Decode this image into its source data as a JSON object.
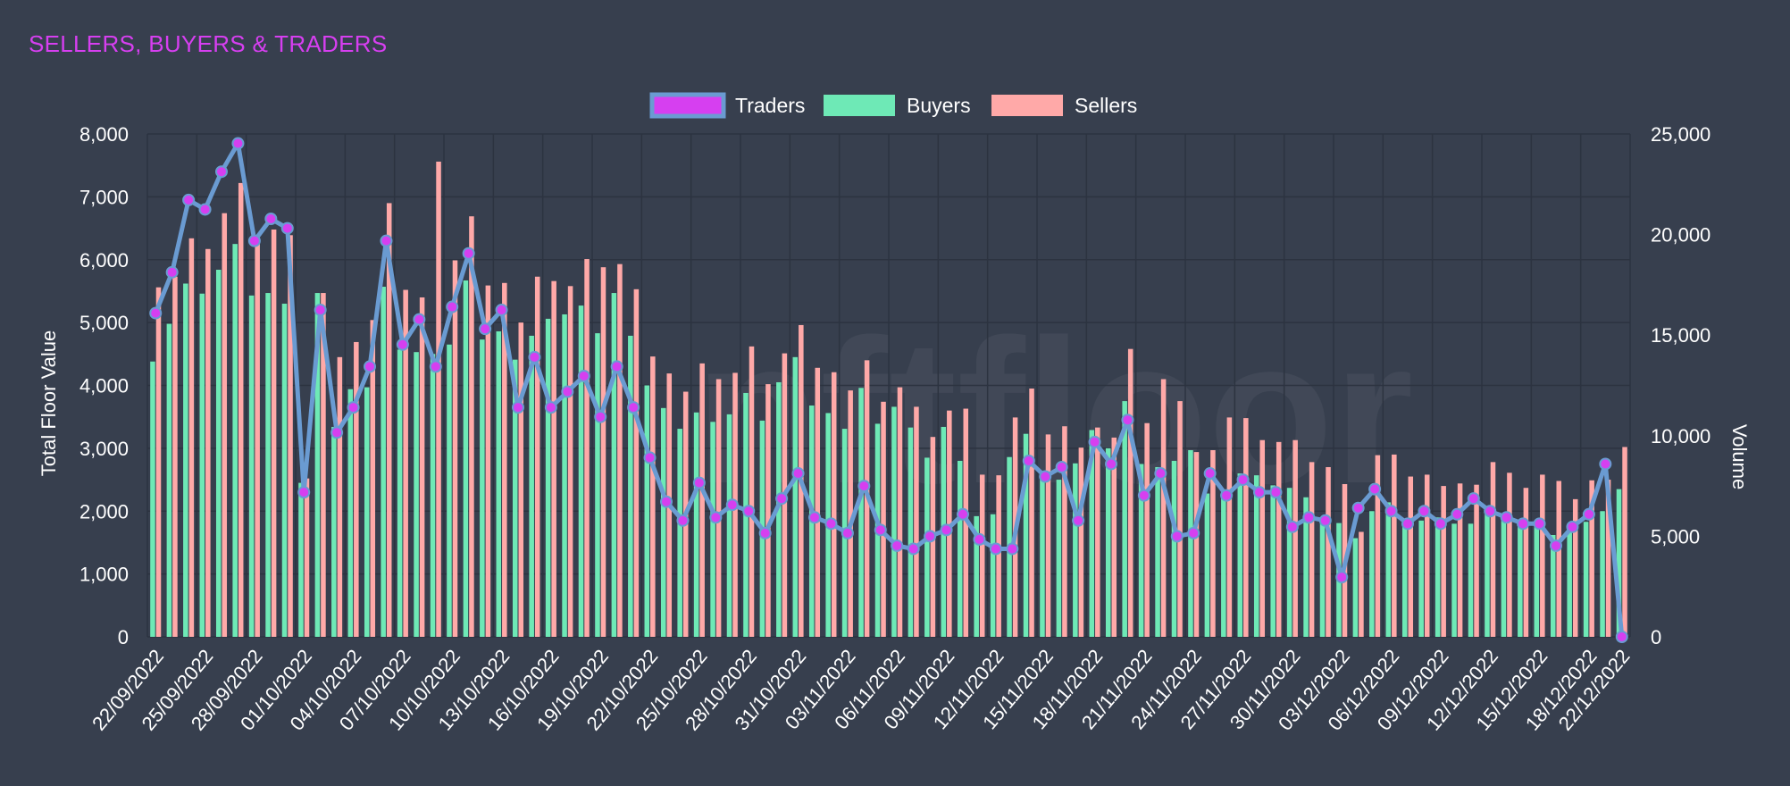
{
  "title": "SELLERS, BUYERS & TRADERS",
  "watermark": "nftfloor",
  "colors": {
    "background": "#373f4e",
    "title": "#d63ff0",
    "traders_line": "#6a9bd2",
    "traders_point": "#d63ff0",
    "buyers": "#6ee9b6",
    "sellers": "#ffa9a8",
    "grid": "#2c3340",
    "text": "#ffffff"
  },
  "chart_data": {
    "type": "bar",
    "title": "SELLERS, BUYERS & TRADERS",
    "legend_position": "top-center",
    "grid": true,
    "y_left": {
      "label": "Total Floor Value",
      "range": [
        0,
        8000
      ],
      "ticks": [
        "0",
        "1,000",
        "2,000",
        "3,000",
        "4,000",
        "5,000",
        "6,000",
        "7,000",
        "8,000"
      ]
    },
    "y_right": {
      "label": "Volume",
      "range": [
        0,
        25000
      ],
      "ticks": [
        "0",
        "5,000",
        "10,000",
        "15,000",
        "20,000",
        "25,000"
      ]
    },
    "x_tick_labels": [
      "22/09/2022",
      "25/09/2022",
      "28/09/2022",
      "01/10/2022",
      "04/10/2022",
      "07/10/2022",
      "10/10/2022",
      "13/10/2022",
      "16/10/2022",
      "19/10/2022",
      "22/10/2022",
      "25/10/2022",
      "28/10/2022",
      "31/10/2022",
      "03/11/2022",
      "06/11/2022",
      "09/11/2022",
      "12/11/2022",
      "15/11/2022",
      "18/11/2022",
      "21/11/2022",
      "24/11/2022",
      "27/11/2022",
      "30/11/2022",
      "03/12/2022",
      "06/12/2022",
      "09/12/2022",
      "12/12/2022",
      "15/12/2022",
      "18/12/2022",
      "22/12/2022"
    ],
    "series": [
      {
        "name": "Traders",
        "type": "line",
        "axis": "left",
        "values": [
          5150,
          5800,
          6950,
          6800,
          7400,
          7850,
          6300,
          6650,
          6500,
          2300,
          5200,
          3250,
          3650,
          4300,
          6300,
          4650,
          5050,
          4300,
          5250,
          6100,
          4900,
          5200,
          3650,
          4450,
          3650,
          3900,
          4150,
          3500,
          4300,
          3650,
          2850,
          2150,
          1850,
          2450,
          1900,
          2100,
          2000,
          1650,
          2200,
          2600,
          1900,
          1800,
          1650,
          2400,
          1700,
          1450,
          1400,
          1600,
          1700,
          1950,
          1550,
          1400,
          1400,
          2800,
          2550,
          2700,
          1850,
          3100,
          2750,
          3450,
          2250,
          2600,
          1600,
          1650,
          2600,
          2250,
          2500,
          2300,
          2300,
          1750,
          1900,
          1850,
          950,
          2050,
          2350,
          2000,
          1800,
          2000,
          1800,
          1950,
          2200,
          2000,
          1900,
          1800,
          1800,
          1450,
          1750,
          1950,
          2750,
          0
        ]
      },
      {
        "name": "Buyers",
        "type": "bar",
        "axis": "left",
        "values": [
          4380,
          4980,
          5620,
          5460,
          5840,
          6250,
          5430,
          5470,
          5300,
          2450,
          5470,
          3340,
          3940,
          3970,
          5570,
          4570,
          4530,
          4500,
          4650,
          5670,
          4730,
          4860,
          4410,
          4790,
          5060,
          5130,
          5270,
          4830,
          5470,
          4790,
          4000,
          3640,
          3310,
          3570,
          3420,
          3540,
          3880,
          3440,
          4050,
          4450,
          3680,
          3560,
          3310,
          3960,
          3390,
          3660,
          3330,
          2850,
          3340,
          2800,
          1920,
          1950,
          2860,
          3230,
          2520,
          2500,
          2760,
          3290,
          3000,
          3750,
          2750,
          2700,
          2800,
          2970,
          2280,
          2320,
          2600,
          2570,
          2410,
          2370,
          2220,
          1820,
          1810,
          1570,
          2000,
          2140,
          1880,
          1850,
          1900,
          1800,
          1800,
          1980,
          1960,
          1860,
          1820,
          1620,
          1700,
          1830,
          2000,
          2350
        ]
      },
      {
        "name": "Sellers",
        "type": "bar",
        "axis": "left",
        "values": [
          5560,
          5730,
          6340,
          6170,
          6740,
          7220,
          6270,
          6480,
          6390,
          2520,
          5470,
          4450,
          4690,
          5040,
          6900,
          5520,
          5400,
          7560,
          5990,
          6690,
          5590,
          5630,
          5000,
          5730,
          5660,
          5580,
          6010,
          5880,
          5930,
          5530,
          4460,
          4190,
          3900,
          4350,
          4100,
          4200,
          4620,
          4020,
          4510,
          4960,
          4280,
          4210,
          3920,
          4400,
          3740,
          3970,
          3660,
          3180,
          3600,
          3630,
          2580,
          2570,
          3490,
          3950,
          3220,
          3350,
          3010,
          3330,
          3170,
          4580,
          3400,
          4100,
          3750,
          2940,
          2970,
          3490,
          3480,
          3130,
          3100,
          3130,
          2780,
          2700,
          2430,
          1670,
          2890,
          2900,
          2550,
          2580,
          2400,
          2440,
          2420,
          2780,
          2610,
          2370,
          2580,
          2480,
          2190,
          2490,
          2500,
          3020
        ]
      }
    ]
  }
}
